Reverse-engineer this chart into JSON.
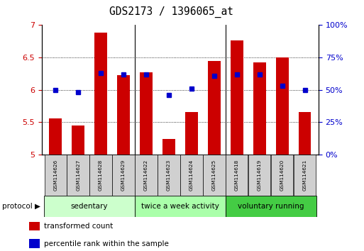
{
  "title": "GDS2173 / 1396065_at",
  "samples": [
    "GSM114626",
    "GSM114627",
    "GSM114628",
    "GSM114629",
    "GSM114622",
    "GSM114623",
    "GSM114624",
    "GSM114625",
    "GSM114618",
    "GSM114619",
    "GSM114620",
    "GSM114621"
  ],
  "bar_values": [
    5.56,
    5.45,
    6.88,
    6.23,
    6.27,
    5.24,
    5.65,
    6.44,
    6.76,
    6.42,
    6.5,
    5.65
  ],
  "dot_values": [
    50,
    48,
    63,
    62,
    62,
    46,
    51,
    61,
    62,
    62,
    53,
    50
  ],
  "bar_color": "#cc0000",
  "dot_color": "#0000cc",
  "ylim": [
    5.0,
    7.0
  ],
  "y2lim": [
    0,
    100
  ],
  "yticks": [
    5.0,
    5.5,
    6.0,
    6.5,
    7.0
  ],
  "ytick_labels": [
    "5",
    "5.5",
    "6",
    "6.5",
    "7"
  ],
  "y2ticks": [
    0,
    25,
    50,
    75,
    100
  ],
  "y2ticklabels": [
    "0%",
    "25%",
    "50%",
    "75%",
    "100%"
  ],
  "groups": [
    {
      "label": "sedentary",
      "start": 0,
      "end": 4,
      "color": "#ccffcc"
    },
    {
      "label": "twice a week activity",
      "start": 4,
      "end": 8,
      "color": "#aaffaa"
    },
    {
      "label": "voluntary running",
      "start": 8,
      "end": 12,
      "color": "#44cc44"
    }
  ],
  "protocol_label": "protocol",
  "legend_bar_label": "transformed count",
  "legend_dot_label": "percentile rank within the sample",
  "left_ycolor": "#cc0000",
  "right_ycolor": "#0000cc",
  "bar_bottom": 5.0,
  "sample_box_color": "#d0d0d0",
  "group_bg_colors": [
    "#ccffcc",
    "#aaffaa",
    "#44cc44"
  ]
}
